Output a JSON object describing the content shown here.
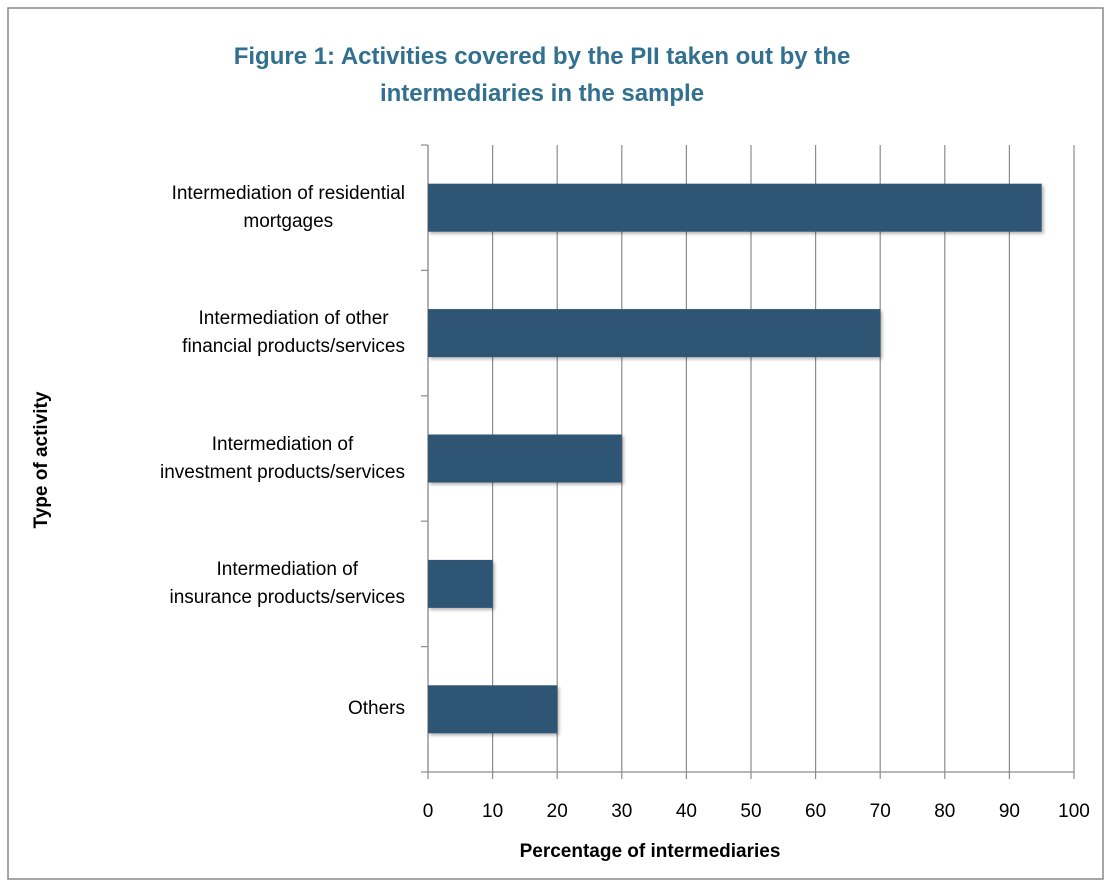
{
  "chart_data": {
    "type": "bar",
    "orientation": "horizontal",
    "title": "Figure 1: Activities covered by the PII taken out by the\nintermediaries in the sample",
    "categories": [
      "Intermediation of residential\nmortgages",
      "Intermediation of other\nfinancial products/services",
      "Intermediation of\ninvestment products/services",
      "Intermediation of\ninsurance products/services",
      "Others"
    ],
    "values": [
      95,
      70,
      30,
      10,
      20
    ],
    "color": "#2f5573",
    "xlim": [
      0,
      100
    ],
    "xticks": [
      0,
      10,
      20,
      30,
      40,
      50,
      60,
      70,
      80,
      90,
      100
    ],
    "x_label": "Percentage of intermediaries",
    "y_label": "Type of activity",
    "grid": true
  }
}
